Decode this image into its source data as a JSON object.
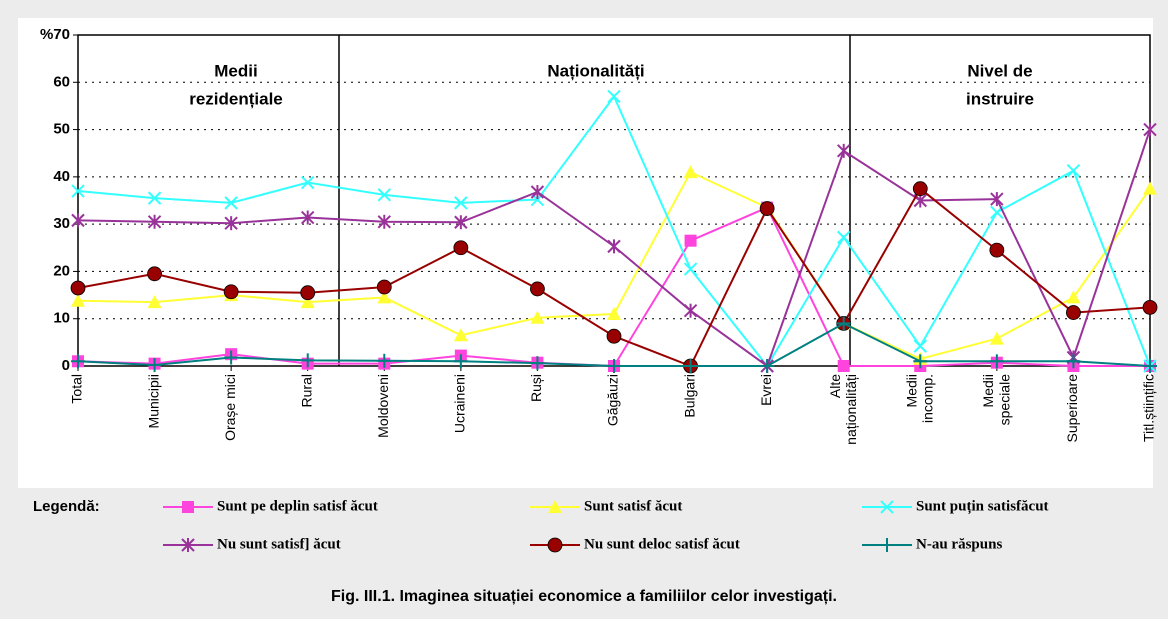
{
  "chart_data": {
    "type": "line",
    "caption": "Fig. III.1.  Imaginea situației economice a familiilor celor investigați.",
    "legend_title": "Legendă:",
    "sections": [
      [
        "Medii",
        "rezidențiale"
      ],
      [
        "Naționalități"
      ],
      [
        "Nivel de",
        "instruire"
      ]
    ],
    "categories": [
      "Total",
      "Municipii",
      "Orașe mici",
      "Rural",
      "Moldoveni",
      "Ucraineni",
      "Ruși",
      "Găgăuzi",
      "Bulgari",
      "Evrei",
      "Alte naționalități",
      "Medii incomp.",
      "Medii speciale",
      "Superioare",
      "Titl.științific"
    ],
    "series": [
      {
        "name": "Sunt pe deplin satisf ăcut",
        "color": "#ff44dd",
        "marker": "square",
        "values": [
          1,
          0.5,
          2.5,
          0.5,
          0.5,
          2.2,
          0.7,
          0,
          26.5,
          33.5,
          0,
          0,
          0.7,
          0,
          0
        ]
      },
      {
        "name": "Sunt satisf ăcut",
        "color": "#ffff33",
        "marker": "triangle",
        "values": [
          13.8,
          13.5,
          15,
          13.5,
          14.5,
          6.5,
          10.2,
          11,
          41,
          33.5,
          9,
          1.5,
          5.8,
          14.5,
          37.5
        ]
      },
      {
        "name": "Sunt puțin satisfăcut",
        "color": "#33ffff",
        "marker": "x",
        "values": [
          37,
          35.5,
          34.5,
          38.8,
          36.2,
          34.5,
          35.2,
          57,
          20.5,
          0,
          27.2,
          4.2,
          32.5,
          41.3,
          0
        ]
      },
      {
        "name": "Nu sunt satisf] ăcut",
        "color": "#993399",
        "marker": "star",
        "values": [
          30.8,
          30.5,
          30.2,
          31.4,
          30.5,
          30.4,
          36.8,
          25.3,
          11.7,
          0,
          45.5,
          35,
          35.3,
          1.8,
          50
        ]
      },
      {
        "name": "Nu sunt deloc satisf ăcut",
        "color": "#990000",
        "marker": "circle",
        "values": [
          16.5,
          19.5,
          15.7,
          15.5,
          16.7,
          25,
          16.3,
          6.3,
          0,
          33.3,
          9,
          37.5,
          24.5,
          11.3,
          12.4
        ]
      },
      {
        "name": "N-au răspuns",
        "color": "#008080",
        "marker": "plus",
        "values": [
          1,
          0.2,
          1.8,
          1.2,
          1.1,
          1,
          0.6,
          0,
          0,
          0,
          9,
          1,
          1,
          1,
          0
        ]
      }
    ],
    "ylim": [
      0,
      70
    ],
    "yticks": [
      0,
      10,
      20,
      30,
      40,
      50,
      60,
      {
        "value": 70,
        "label": "%70"
      }
    ],
    "grid": true
  }
}
